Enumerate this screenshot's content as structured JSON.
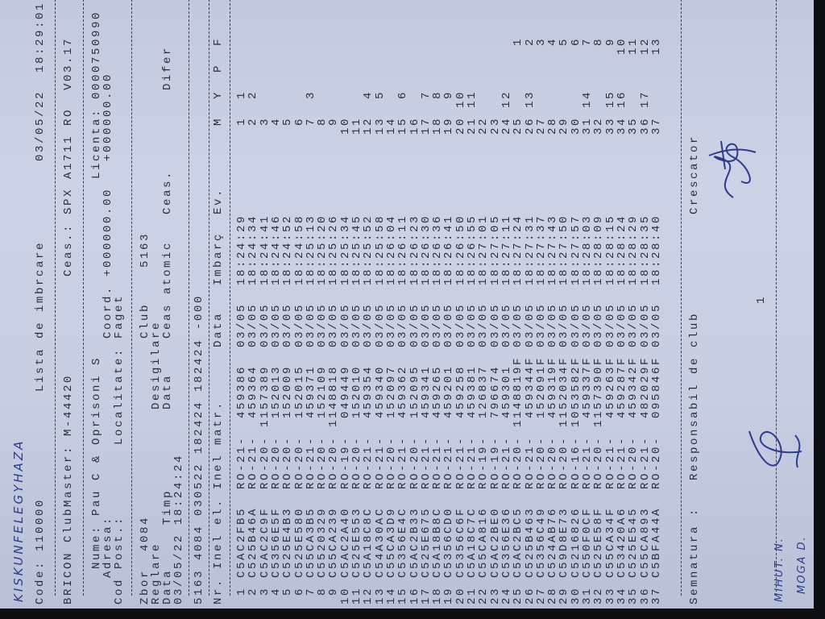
{
  "handwritten_location": "KISKUNFELEGYHAZA",
  "header": {
    "code": "Code: 110000",
    "title": "Lista de imbrcare",
    "printed_datetime": "03/05/22  18:29:01",
    "clubmaster": "BRICON ClubMaster: M-44420",
    "clock": "Ceas.: SPX A1711 RO  V03.17"
  },
  "owner": {
    "name": "Nume: Pau C & Oprisoni S",
    "licence": "Licenta: 0000750990",
    "address_label": "Adresa:",
    "coord": "Coord. +000000.00   +000000.00",
    "postcode_label": "Cod Post.:",
    "locality": "Localitate: Faget"
  },
  "flight": {
    "zbor_label": "Zbor",
    "zbor_value": "4084",
    "club_label": "Club",
    "club_value": "5163",
    "reglare": "Reglare",
    "desigilare": "Desigilare",
    "data_label": "Data",
    "timp_label": "Timp",
    "data_label2": "Data",
    "ceas_atomic": "Ceas atomic",
    "ceas": "Ceas.",
    "difer": "Difer",
    "date_value": "03/05/22",
    "time_value": "18:24:24",
    "summary_line": "5163 4084 030522 182424 182424 -000"
  },
  "table": {
    "headers": {
      "nr": "Nr. Inel el. Inel matr.",
      "data": "Data",
      "imbarc": "Imbarç",
      "ev": "Ev.",
      "m": "M",
      "y": "Y",
      "p": "P",
      "f": "F"
    },
    "rows": [
      {
        "nr": "1",
        "code": "C5AC2FB5",
        "ro": "RO-21-",
        "ring": "459386",
        "date": "03/05",
        "time": "18:24:29",
        "m": "1",
        "y": "1",
        "f": ""
      },
      {
        "nr": "2",
        "code": "C525B46A",
        "ro": "RO-21-",
        "ring": "459364",
        "date": "03/05",
        "time": "18:24:34",
        "m": "2",
        "y": "2",
        "f": ""
      },
      {
        "nr": "3",
        "code": "C5AC2C9F",
        "ro": "RO-20-",
        "ring": "1157389",
        "date": "03/05",
        "time": "18:24:41",
        "m": "3",
        "y": "",
        "f": ""
      },
      {
        "nr": "4",
        "code": "C5356E5F",
        "ro": "RO-20-",
        "ring": "152013",
        "date": "03/05",
        "time": "18:24:46",
        "m": "4",
        "y": "",
        "f": ""
      },
      {
        "nr": "5",
        "code": "C525E4B3",
        "ro": "RO-20-",
        "ring": "152009",
        "date": "03/05",
        "time": "18:24:52",
        "m": "5",
        "y": "",
        "f": ""
      },
      {
        "nr": "6",
        "code": "C525E580",
        "ro": "RO-20-",
        "ring": "152015",
        "date": "03/05",
        "time": "18:24:58",
        "m": "6",
        "y": "",
        "f": ""
      },
      {
        "nr": "7",
        "code": "C55CA3B5",
        "ro": "RO-21-",
        "ring": "459371",
        "date": "03/05",
        "time": "18:25:13",
        "m": "7",
        "y": "3",
        "f": ""
      },
      {
        "nr": "8",
        "code": "C5520329",
        "ro": "RO-20-",
        "ring": "152109",
        "date": "03/05",
        "time": "18:25:20",
        "m": "8",
        "y": "",
        "f": ""
      },
      {
        "nr": "9",
        "code": "C55CA239",
        "ro": "RO-20-",
        "ring": "1148818",
        "date": "03/05",
        "time": "18:25:26",
        "m": "9",
        "y": "",
        "f": ""
      },
      {
        "nr": "10",
        "code": "C5AC2A40",
        "ro": "RO-19-",
        "ring": "049449",
        "date": "03/05",
        "time": "18:25:34",
        "m": "10",
        "y": "",
        "f": ""
      },
      {
        "nr": "11",
        "code": "C525E553",
        "ro": "RO-20-",
        "ring": "152010",
        "date": "03/05",
        "time": "18:25:45",
        "m": "11",
        "y": "",
        "f": ""
      },
      {
        "nr": "12",
        "code": "C5A18C8C",
        "ro": "RO-21-",
        "ring": "459354",
        "date": "03/05",
        "time": "18:25:52",
        "m": "12",
        "y": "4",
        "f": ""
      },
      {
        "nr": "13",
        "code": "C54A30AC",
        "ro": "RO-21-",
        "ring": "459340",
        "date": "03/05",
        "time": "18:25:58",
        "m": "13",
        "y": "5",
        "f": ""
      },
      {
        "nr": "14",
        "code": "C55CA3D9",
        "ro": "RO-20-",
        "ring": "152097",
        "date": "03/05",
        "time": "18:26:04",
        "m": "14",
        "y": "",
        "f": ""
      },
      {
        "nr": "15",
        "code": "C5356E4C",
        "ro": "RO-21-",
        "ring": "459362",
        "date": "03/05",
        "time": "18:26:11",
        "m": "15",
        "y": "6",
        "f": ""
      },
      {
        "nr": "16",
        "code": "C5AC2B33",
        "ro": "RO-20-",
        "ring": "152095",
        "date": "03/05",
        "time": "18:26:23",
        "m": "16",
        "y": "",
        "f": ""
      },
      {
        "nr": "17",
        "code": "C525E675",
        "ro": "RO-21-",
        "ring": "459341",
        "date": "03/05",
        "time": "18:26:30",
        "m": "17",
        "y": "7",
        "f": ""
      },
      {
        "nr": "18",
        "code": "C5A18B8C",
        "ro": "RO-21-",
        "ring": "459265",
        "date": "03/05",
        "time": "18:26:36",
        "m": "18",
        "y": "8",
        "f": ""
      },
      {
        "nr": "19",
        "code": "C5356CD0",
        "ro": "RO-21-",
        "ring": "459201",
        "date": "03/05",
        "time": "18:26:41",
        "m": "19",
        "y": "9",
        "f": ""
      },
      {
        "nr": "20",
        "code": "C5356C6F",
        "ro": "RO-21-",
        "ring": "459258",
        "date": "03/05",
        "time": "18:26:50",
        "m": "20",
        "y": "10",
        "f": ""
      },
      {
        "nr": "21",
        "code": "C5A18C7C",
        "ro": "RO-21-",
        "ring": "459381",
        "date": "03/05",
        "time": "18:26:55",
        "m": "21",
        "y": "11",
        "f": ""
      },
      {
        "nr": "22",
        "code": "C55CA816",
        "ro": "RO-19-",
        "ring": "126837",
        "date": "03/05",
        "time": "18:27:01",
        "m": "22",
        "y": "",
        "f": ""
      },
      {
        "nr": "23",
        "code": "C5AC2BE0",
        "ro": "RO-19-",
        "ring": "796674",
        "date": "03/05",
        "time": "18:27:05",
        "m": "23",
        "y": "",
        "f": ""
      },
      {
        "nr": "24",
        "code": "C5356E36",
        "ro": "RO-21-",
        "ring": "459301",
        "date": "03/05",
        "time": "18:27:11",
        "m": "24",
        "y": "12",
        "f": ""
      },
      {
        "nr": "25",
        "code": "C5AC2BC5",
        "ro": "RO-20-",
        "ring": "1148819F",
        "date": "03/05",
        "time": "18:27:24",
        "m": "25",
        "y": "",
        "f": "1"
      },
      {
        "nr": "26",
        "code": "C525B463",
        "ro": "RO-21-",
        "ring": "459344F",
        "date": "03/05",
        "time": "18:27:31",
        "m": "26",
        "y": "13",
        "f": "2"
      },
      {
        "nr": "27",
        "code": "C5356C49",
        "ro": "RO-20-",
        "ring": "152091F",
        "date": "03/05",
        "time": "18:27:37",
        "m": "27",
        "y": "",
        "f": "3"
      },
      {
        "nr": "28",
        "code": "C524AB76",
        "ro": "RO-20-",
        "ring": "459319F",
        "date": "03/05",
        "time": "18:27:43",
        "m": "28",
        "y": "",
        "f": "4"
      },
      {
        "nr": "29",
        "code": "C59D8E73",
        "ro": "RO-20-",
        "ring": "1152034F",
        "date": "03/05",
        "time": "18:27:50",
        "m": "29",
        "y": "",
        "f": "5"
      },
      {
        "nr": "30",
        "code": "C5216826",
        "ro": "RO-16-",
        "ring": "1053582F",
        "date": "03/05",
        "time": "18:27:57",
        "m": "30",
        "y": "",
        "f": "6"
      },
      {
        "nr": "31",
        "code": "C550F0CF",
        "ro": "RO-21-",
        "ring": "459337F",
        "date": "03/05",
        "time": "18:28:03",
        "m": "31",
        "y": "14",
        "f": "7"
      },
      {
        "nr": "32",
        "code": "C525E58F",
        "ro": "RO-20-",
        "ring": "1157390F",
        "date": "03/05",
        "time": "18:28:09",
        "m": "32",
        "y": "",
        "f": "8"
      },
      {
        "nr": "33",
        "code": "C55CA34F",
        "ro": "RO-21-",
        "ring": "459263F",
        "date": "03/05",
        "time": "18:28:15",
        "m": "33",
        "y": "15",
        "f": "9"
      },
      {
        "nr": "34",
        "code": "C53420A6",
        "ro": "RO-21-",
        "ring": "459287F",
        "date": "03/05",
        "time": "18:28:24",
        "m": "34",
        "y": "16",
        "f": "10"
      },
      {
        "nr": "35",
        "code": "C525E545",
        "ro": "RO-20-",
        "ring": "459342F",
        "date": "03/05",
        "time": "18:28:29",
        "m": "35",
        "y": "",
        "f": "11"
      },
      {
        "nr": "36",
        "code": "C55CA893",
        "ro": "RO-21-",
        "ring": "482029F",
        "date": "03/05",
        "time": "18:28:35",
        "m": "36",
        "y": "17",
        "f": "12"
      },
      {
        "nr": "37",
        "code": "C5BFA44A",
        "ro": "RO-20-",
        "ring": "095846F",
        "date": "03/05",
        "time": "18:28:40",
        "m": "37",
        "y": "",
        "f": "13"
      }
    ]
  },
  "footer": {
    "signature_label": "Semnatura :",
    "club_responsible": "Responsabil de club",
    "breeder": "Crescator",
    "page_number": "1",
    "handwritten_names": [
      "MIHUT. N.",
      "MOGA D."
    ]
  },
  "colors": {
    "paper": "#c7cee2",
    "ink": "#2a2d3b",
    "pen": "#2d3c8c"
  }
}
